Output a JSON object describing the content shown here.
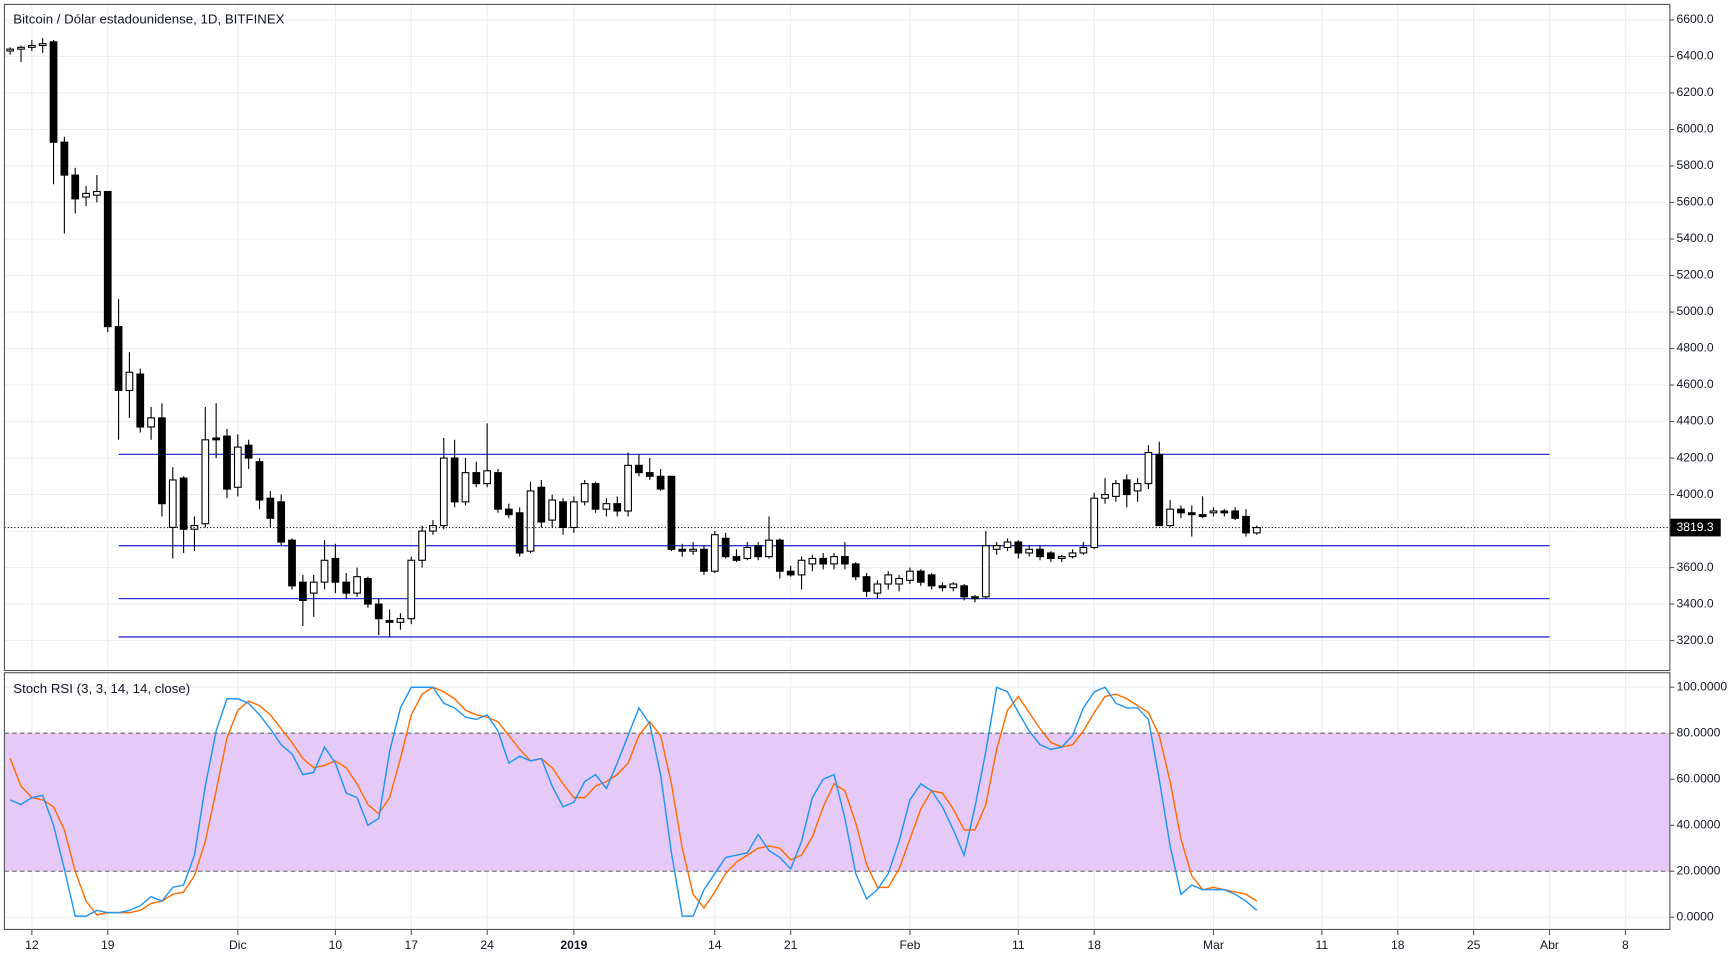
{
  "chart_data": [
    {
      "type": "candlestick",
      "title": "Bitcoin / Dólar estadounidense, 1D, BITFINEX",
      "x": [
        0,
        1,
        2,
        3,
        4,
        5,
        6,
        7,
        8,
        9,
        10,
        11,
        12,
        13,
        14,
        15,
        16,
        17,
        18,
        19,
        20,
        21,
        22,
        23,
        24,
        25,
        26,
        27,
        28,
        29,
        30,
        31,
        32,
        33,
        34,
        35,
        36,
        37,
        38,
        39,
        40,
        41,
        42,
        43,
        44,
        45,
        46,
        47,
        48,
        49,
        50,
        51,
        52,
        53,
        54,
        55,
        56,
        57,
        58,
        59,
        60,
        61,
        62,
        63,
        64,
        65,
        66,
        67,
        68,
        69,
        70,
        71,
        72,
        73,
        74,
        75,
        76,
        77,
        78,
        79,
        80,
        81,
        82,
        83,
        84,
        85,
        86,
        87,
        88,
        89,
        90,
        91,
        92,
        93,
        94,
        95,
        96,
        97,
        98,
        99,
        100,
        101,
        102,
        103,
        104,
        105,
        106,
        107,
        108,
        109,
        110,
        111,
        112,
        113,
        114,
        115
      ],
      "open": [
        6430,
        6440,
        6450,
        6460,
        6480,
        5930,
        5750,
        5630,
        5640,
        5660,
        4920,
        4570,
        4660,
        4370,
        4420,
        3820,
        4090,
        3810,
        3840,
        4310,
        4320,
        4040,
        4270,
        4180,
        3980,
        3960,
        3750,
        3520,
        3460,
        3520,
        3650,
        3520,
        3460,
        3540,
        3400,
        3310,
        3300,
        3320,
        3640,
        3800,
        3830,
        4200,
        3960,
        4120,
        4060,
        4120,
        3920,
        3900,
        3690,
        4040,
        3860,
        3960,
        3820,
        3960,
        4060,
        3920,
        3950,
        3910,
        4160,
        4120,
        4100,
        4100,
        3700,
        3690,
        3700,
        3580,
        3760,
        3660,
        3650,
        3720,
        3660,
        3750,
        3580,
        3560,
        3620,
        3650,
        3620,
        3660,
        3620,
        3550,
        3460,
        3510,
        3510,
        3530,
        3580,
        3560,
        3500,
        3490,
        3500,
        3440,
        3440,
        3700,
        3710,
        3740,
        3680,
        3700,
        3680,
        3650,
        3660,
        3680,
        3710,
        3980,
        3990,
        4080,
        4020,
        4060,
        4220,
        3830,
        3920,
        3900,
        3890,
        3900,
        3910,
        3910,
        3880,
        3790
      ],
      "high": [
        6450,
        6460,
        6490,
        6500,
        6490,
        5960,
        5790,
        5690,
        5750,
        5660,
        5070,
        4780,
        4690,
        4480,
        4500,
        4150,
        4100,
        3880,
        4480,
        4500,
        4360,
        4330,
        4300,
        4200,
        4020,
        4000,
        3760,
        3560,
        3560,
        3750,
        3730,
        3570,
        3600,
        3550,
        3430,
        3370,
        3350,
        3660,
        3830,
        3860,
        4310,
        4300,
        4200,
        4180,
        4390,
        4140,
        3950,
        3930,
        4070,
        4080,
        4000,
        3980,
        3990,
        4080,
        4070,
        3980,
        3990,
        4230,
        4220,
        4200,
        4140,
        4100,
        3730,
        3740,
        3720,
        3800,
        3790,
        3700,
        3740,
        3740,
        3880,
        3760,
        3610,
        3660,
        3670,
        3680,
        3680,
        3740,
        3630,
        3570,
        3530,
        3580,
        3560,
        3600,
        3590,
        3570,
        3520,
        3520,
        3510,
        3450,
        3800,
        3740,
        3760,
        3750,
        3720,
        3720,
        3690,
        3670,
        3700,
        3740,
        4010,
        4090,
        4080,
        4110,
        4090,
        4270,
        4290,
        3970,
        3940,
        3940,
        3990,
        3930,
        3920,
        3930,
        3920,
        3830
      ],
      "low": [
        6410,
        6370,
        6430,
        6420,
        5700,
        5430,
        5540,
        5580,
        5600,
        4890,
        4300,
        4420,
        4340,
        4300,
        3880,
        3650,
        3680,
        3690,
        3820,
        4200,
        3980,
        3990,
        4140,
        3920,
        3820,
        3720,
        3480,
        3280,
        3330,
        3480,
        3460,
        3430,
        3440,
        3380,
        3230,
        3220,
        3260,
        3290,
        3600,
        3780,
        3810,
        3930,
        3940,
        4040,
        4040,
        3900,
        3870,
        3660,
        3680,
        3820,
        3820,
        3780,
        3790,
        3940,
        3900,
        3880,
        3880,
        3880,
        4100,
        4080,
        4020,
        3690,
        3660,
        3670,
        3560,
        3570,
        3650,
        3630,
        3640,
        3640,
        3650,
        3540,
        3550,
        3480,
        3580,
        3590,
        3590,
        3590,
        3530,
        3440,
        3430,
        3480,
        3470,
        3510,
        3500,
        3480,
        3470,
        3470,
        3420,
        3410,
        3430,
        3670,
        3690,
        3650,
        3660,
        3640,
        3630,
        3630,
        3650,
        3670,
        3700,
        3950,
        3960,
        3930,
        3960,
        4030,
        3830,
        3820,
        3870,
        3770,
        3870,
        3880,
        3880,
        3860,
        3770,
        3780
      ],
      "close": [
        6440,
        6450,
        6460,
        6470,
        5930,
        5750,
        5620,
        5650,
        5660,
        4920,
        4570,
        4670,
        4370,
        4420,
        3950,
        4080,
        3810,
        3830,
        4300,
        4300,
        4030,
        4260,
        4200,
        3970,
        3870,
        3740,
        3500,
        3420,
        3520,
        3640,
        3520,
        3460,
        3550,
        3400,
        3320,
        3300,
        3320,
        3640,
        3800,
        3830,
        4200,
        3960,
        4120,
        4060,
        4130,
        3920,
        3890,
        3680,
        4020,
        3850,
        3970,
        3820,
        3960,
        4060,
        3920,
        3950,
        3910,
        4160,
        4120,
        4100,
        4030,
        3700,
        3690,
        3700,
        3580,
        3780,
        3660,
        3640,
        3710,
        3660,
        3750,
        3580,
        3560,
        3640,
        3650,
        3620,
        3660,
        3620,
        3550,
        3470,
        3510,
        3560,
        3540,
        3580,
        3520,
        3500,
        3490,
        3510,
        3440,
        3430,
        3720,
        3720,
        3740,
        3680,
        3700,
        3660,
        3650,
        3660,
        3680,
        3710,
        3980,
        4000,
        4060,
        4000,
        4060,
        4230,
        3830,
        3920,
        3900,
        3890,
        3880,
        3910,
        3900,
        3870,
        3790,
        3819.3
      ],
      "up_color": "#ffffff",
      "down_color": "#000000",
      "levels": [
        4220,
        3720,
        3430,
        3220
      ],
      "level_color": "#3232d8",
      "ylim": [
        3036,
        6685
      ],
      "yticks": [
        {
          "value": 3200,
          "label": "3200.0"
        },
        {
          "value": 3400,
          "label": "3400.0"
        },
        {
          "value": 3600,
          "label": "3600.0"
        },
        {
          "value": 3800,
          "label": "3800.0"
        },
        {
          "value": 4000,
          "label": "4000.0"
        },
        {
          "value": 4200,
          "label": "4200.0"
        },
        {
          "value": 4400,
          "label": "4400.0"
        },
        {
          "value": 4600,
          "label": "4600.0"
        },
        {
          "value": 4800,
          "label": "4800.0"
        },
        {
          "value": 5000,
          "label": "5000.0"
        },
        {
          "value": 5200,
          "label": "5200.0"
        },
        {
          "value": 5400,
          "label": "5400.0"
        },
        {
          "value": 5600,
          "label": "5600.0"
        },
        {
          "value": 5800,
          "label": "5800.0"
        },
        {
          "value": 6000,
          "label": "6000.0"
        },
        {
          "value": 6200,
          "label": "6200.0"
        },
        {
          "value": 6400,
          "label": "6400.0"
        },
        {
          "value": 6600,
          "label": "6600.0"
        }
      ],
      "xlim": [
        -0.53,
        153.1
      ],
      "xticks": [
        {
          "value": 2,
          "label": "12"
        },
        {
          "value": 9,
          "label": "19"
        },
        {
          "value": 21,
          "label": "Dic"
        },
        {
          "value": 30,
          "label": "10"
        },
        {
          "value": 37,
          "label": "17"
        },
        {
          "value": 44,
          "label": "24"
        },
        {
          "value": 52,
          "label": "2019"
        },
        {
          "value": 65,
          "label": "14"
        },
        {
          "value": 72,
          "label": "21"
        },
        {
          "value": 83,
          "label": "Feb"
        },
        {
          "value": 93,
          "label": "11"
        },
        {
          "value": 100,
          "label": "18"
        },
        {
          "value": 111,
          "label": "Mar"
        },
        {
          "value": 121,
          "label": "11"
        },
        {
          "value": 128,
          "label": "18"
        },
        {
          "value": 135,
          "label": "25"
        },
        {
          "value": 142,
          "label": "Abr"
        },
        {
          "value": 149,
          "label": "8"
        }
      ],
      "grid": true
    },
    {
      "type": "line",
      "title": "Stoch RSI (3, 3, 14, 14, close)",
      "series": [
        {
          "color": "#2196f3",
          "values": [
            51,
            49,
            52,
            53,
            40,
            21,
            0.5,
            0.5,
            3,
            2,
            2,
            3,
            5,
            9,
            7,
            13,
            14,
            27,
            57,
            81,
            95,
            95,
            93,
            88,
            82,
            75,
            71,
            62,
            63,
            74,
            67,
            54,
            52,
            40,
            43,
            72,
            91,
            100,
            100,
            100,
            93,
            91,
            87,
            86,
            88,
            81,
            67,
            70,
            68,
            69,
            57,
            48,
            50,
            59,
            62,
            56,
            67,
            79,
            91,
            84,
            62,
            28,
            0.5,
            0.5,
            12,
            19,
            26,
            27,
            28,
            36,
            29,
            26,
            21,
            33,
            52,
            60,
            62,
            43,
            19,
            8,
            12,
            19,
            33,
            51,
            58,
            55,
            48,
            38,
            27,
            48,
            72,
            100,
            98,
            89,
            81,
            75,
            73,
            74,
            79,
            91,
            98,
            100,
            93,
            91,
            91,
            86,
            60,
            31,
            10,
            14,
            12,
            12,
            12,
            10,
            7,
            3
          ]
        },
        {
          "color": "#ff6d00",
          "values": [
            69,
            57,
            52,
            51,
            48,
            38,
            20,
            7,
            1,
            2,
            2,
            2,
            3,
            6,
            7,
            10,
            11,
            18,
            33,
            55,
            78,
            90,
            94,
            92,
            88,
            82,
            76,
            69,
            65,
            66,
            68,
            65,
            58,
            49,
            45,
            52,
            69,
            88,
            97,
            100,
            98,
            95,
            90,
            88,
            87,
            85,
            79,
            73,
            68,
            69,
            65,
            58,
            52,
            52,
            57,
            59,
            62,
            67,
            79,
            85,
            79,
            58,
            30,
            10,
            4,
            11,
            19,
            24,
            27,
            30,
            31,
            30,
            25,
            27,
            35,
            48,
            58,
            55,
            41,
            23,
            13,
            13,
            21,
            34,
            47,
            55,
            54,
            47,
            38,
            38,
            49,
            73,
            90,
            96,
            89,
            82,
            76,
            74,
            75,
            81,
            89,
            96,
            97,
            95,
            92,
            89,
            79,
            59,
            34,
            18,
            12,
            13,
            12,
            11,
            10,
            7
          ]
        }
      ],
      "bands": [
        20,
        80
      ],
      "band_color": "#e5c9f7",
      "ylim": [
        -5.3,
        106.3
      ],
      "yticks": [
        {
          "value": 0,
          "label": "0.0000"
        },
        {
          "value": 20,
          "label": "20.0000"
        },
        {
          "value": 40,
          "label": "40.0000"
        },
        {
          "value": 60,
          "label": "60.0000"
        },
        {
          "value": 80,
          "label": "80.0000"
        },
        {
          "value": 100,
          "label": "100.0000"
        }
      ],
      "grid": true
    }
  ]
}
